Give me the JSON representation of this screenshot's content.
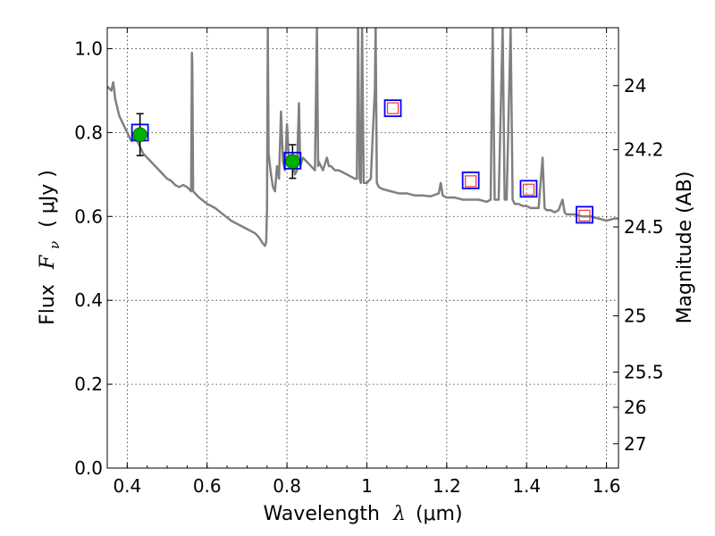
{
  "chart_data": {
    "type": "scatter",
    "xlabel_text": "Wavelength",
    "xlabel_symbol": "λ",
    "xlabel_unit": "(μm)",
    "ylabel_text": "Flux",
    "ylabel_symbol": "F",
    "ylabel_subscript": "ν",
    "ylabel_unit": "( μJy )",
    "y2label": "Magnitude (AB)",
    "xlim": [
      0.35,
      1.63
    ],
    "ylim": [
      0.0,
      1.05
    ],
    "x_ticks": [
      0.4,
      0.6,
      0.8,
      1.0,
      1.2,
      1.4,
      1.6
    ],
    "x_tick_labels": [
      "0.4",
      "0.6",
      "0.8",
      "1",
      "1.2",
      "1.4",
      "1.6"
    ],
    "y_ticks": [
      0.0,
      0.2,
      0.4,
      0.6,
      0.8,
      1.0
    ],
    "y_tick_labels": [
      "0.0",
      "0.2",
      "0.4",
      "0.6",
      "0.8",
      "1.0"
    ],
    "y2_ticks": [
      {
        "label": "24",
        "flux": 0.912
      },
      {
        "label": "24.2",
        "flux": 0.759
      },
      {
        "label": "24.5",
        "flux": 0.575
      },
      {
        "label": "25",
        "flux": 0.363
      },
      {
        "label": "25.5",
        "flux": 0.229
      },
      {
        "label": "26",
        "flux": 0.145
      },
      {
        "label": "27",
        "flux": 0.058
      }
    ],
    "series": [
      {
        "name": "model SED",
        "kind": "line",
        "color": "#808080",
        "points": [
          [
            0.35,
            0.91
          ],
          [
            0.36,
            0.9
          ],
          [
            0.365,
            0.92
          ],
          [
            0.37,
            0.88
          ],
          [
            0.375,
            0.86
          ],
          [
            0.38,
            0.84
          ],
          [
            0.385,
            0.83
          ],
          [
            0.39,
            0.82
          ],
          [
            0.4,
            0.8
          ],
          [
            0.41,
            0.78
          ],
          [
            0.42,
            0.79
          ],
          [
            0.43,
            0.77
          ],
          [
            0.44,
            0.75
          ],
          [
            0.45,
            0.74
          ],
          [
            0.46,
            0.73
          ],
          [
            0.47,
            0.72
          ],
          [
            0.48,
            0.71
          ],
          [
            0.49,
            0.7
          ],
          [
            0.5,
            0.69
          ],
          [
            0.51,
            0.685
          ],
          [
            0.52,
            0.675
          ],
          [
            0.53,
            0.67
          ],
          [
            0.54,
            0.675
          ],
          [
            0.55,
            0.67
          ],
          [
            0.56,
            0.66
          ],
          [
            0.562,
            0.99
          ],
          [
            0.563,
            0.96
          ],
          [
            0.565,
            0.66
          ],
          [
            0.57,
            0.655
          ],
          [
            0.58,
            0.645
          ],
          [
            0.6,
            0.63
          ],
          [
            0.62,
            0.62
          ],
          [
            0.64,
            0.605
          ],
          [
            0.66,
            0.59
          ],
          [
            0.68,
            0.58
          ],
          [
            0.7,
            0.57
          ],
          [
            0.72,
            0.56
          ],
          [
            0.73,
            0.55
          ],
          [
            0.74,
            0.535
          ],
          [
            0.745,
            0.53
          ],
          [
            0.748,
            0.54
          ],
          [
            0.75,
            0.62
          ],
          [
            0.752,
            1.05
          ],
          [
            0.754,
            0.75
          ],
          [
            0.76,
            0.7
          ],
          [
            0.765,
            0.67
          ],
          [
            0.77,
            0.66
          ],
          [
            0.775,
            0.72
          ],
          [
            0.78,
            0.69
          ],
          [
            0.785,
            0.85
          ],
          [
            0.79,
            0.73
          ],
          [
            0.795,
            0.71
          ],
          [
            0.8,
            0.82
          ],
          [
            0.805,
            0.73
          ],
          [
            0.81,
            0.72
          ],
          [
            0.815,
            0.73
          ],
          [
            0.82,
            0.7
          ],
          [
            0.825,
            0.71
          ],
          [
            0.83,
            0.87
          ],
          [
            0.833,
            0.72
          ],
          [
            0.84,
            0.74
          ],
          [
            0.85,
            0.73
          ],
          [
            0.86,
            0.72
          ],
          [
            0.87,
            0.71
          ],
          [
            0.875,
            1.05
          ],
          [
            0.878,
            0.72
          ],
          [
            0.88,
            0.73
          ],
          [
            0.89,
            0.71
          ],
          [
            0.9,
            0.74
          ],
          [
            0.905,
            0.72
          ],
          [
            0.91,
            0.72
          ],
          [
            0.92,
            0.71
          ],
          [
            0.93,
            0.71
          ],
          [
            0.94,
            0.705
          ],
          [
            0.95,
            0.7
          ],
          [
            0.96,
            0.695
          ],
          [
            0.97,
            0.69
          ],
          [
            0.975,
            0.69
          ],
          [
            0.978,
            1.05
          ],
          [
            0.982,
            0.69
          ],
          [
            0.985,
            0.68
          ],
          [
            0.988,
            1.05
          ],
          [
            0.992,
            0.68
          ],
          [
            1.0,
            0.68
          ],
          [
            1.01,
            0.69
          ],
          [
            1.015,
            0.8
          ],
          [
            1.02,
            0.9
          ],
          [
            1.022,
            1.05
          ],
          [
            1.025,
            0.68
          ],
          [
            1.03,
            0.67
          ],
          [
            1.04,
            0.665
          ],
          [
            1.06,
            0.66
          ],
          [
            1.08,
            0.655
          ],
          [
            1.1,
            0.655
          ],
          [
            1.12,
            0.65
          ],
          [
            1.14,
            0.65
          ],
          [
            1.16,
            0.648
          ],
          [
            1.18,
            0.655
          ],
          [
            1.185,
            0.68
          ],
          [
            1.19,
            0.65
          ],
          [
            1.2,
            0.645
          ],
          [
            1.22,
            0.645
          ],
          [
            1.24,
            0.64
          ],
          [
            1.26,
            0.64
          ],
          [
            1.28,
            0.64
          ],
          [
            1.3,
            0.635
          ],
          [
            1.31,
            0.64
          ],
          [
            1.315,
            1.05
          ],
          [
            1.32,
            0.64
          ],
          [
            1.33,
            0.64
          ],
          [
            1.34,
            1.05
          ],
          [
            1.345,
            0.64
          ],
          [
            1.35,
            0.64
          ],
          [
            1.36,
            1.05
          ],
          [
            1.365,
            0.64
          ],
          [
            1.37,
            0.63
          ],
          [
            1.38,
            0.63
          ],
          [
            1.39,
            0.625
          ],
          [
            1.4,
            0.625
          ],
          [
            1.41,
            0.62
          ],
          [
            1.42,
            0.62
          ],
          [
            1.43,
            0.62
          ],
          [
            1.44,
            0.74
          ],
          [
            1.445,
            0.62
          ],
          [
            1.45,
            0.615
          ],
          [
            1.46,
            0.615
          ],
          [
            1.47,
            0.61
          ],
          [
            1.48,
            0.615
          ],
          [
            1.49,
            0.64
          ],
          [
            1.495,
            0.61
          ],
          [
            1.5,
            0.605
          ],
          [
            1.52,
            0.605
          ],
          [
            1.54,
            0.6
          ],
          [
            1.56,
            0.6
          ],
          [
            1.58,
            0.595
          ],
          [
            1.6,
            0.59
          ],
          [
            1.62,
            0.595
          ],
          [
            1.63,
            0.595
          ]
        ]
      },
      {
        "name": "observed photometry",
        "kind": "points",
        "color": "#00b000",
        "points": [
          {
            "x": 0.432,
            "y": 0.795,
            "yerr": 0.05
          },
          {
            "x": 0.814,
            "y": 0.731,
            "yerr": 0.04
          }
        ]
      },
      {
        "name": "model photometry (blue)",
        "kind": "squares",
        "color": "#0000ff",
        "points": [
          {
            "x": 0.432,
            "y": 0.8
          },
          {
            "x": 0.814,
            "y": 0.733
          },
          {
            "x": 1.065,
            "y": 0.858
          },
          {
            "x": 1.26,
            "y": 0.686
          },
          {
            "x": 1.405,
            "y": 0.666
          },
          {
            "x": 1.545,
            "y": 0.604
          }
        ]
      },
      {
        "name": "model photometry (red)",
        "kind": "squares",
        "color": "#ff3030",
        "points": [
          {
            "x": 1.065,
            "y": 0.858
          },
          {
            "x": 1.26,
            "y": 0.684
          },
          {
            "x": 1.405,
            "y": 0.664
          },
          {
            "x": 1.545,
            "y": 0.602
          }
        ]
      }
    ],
    "grid": true
  }
}
